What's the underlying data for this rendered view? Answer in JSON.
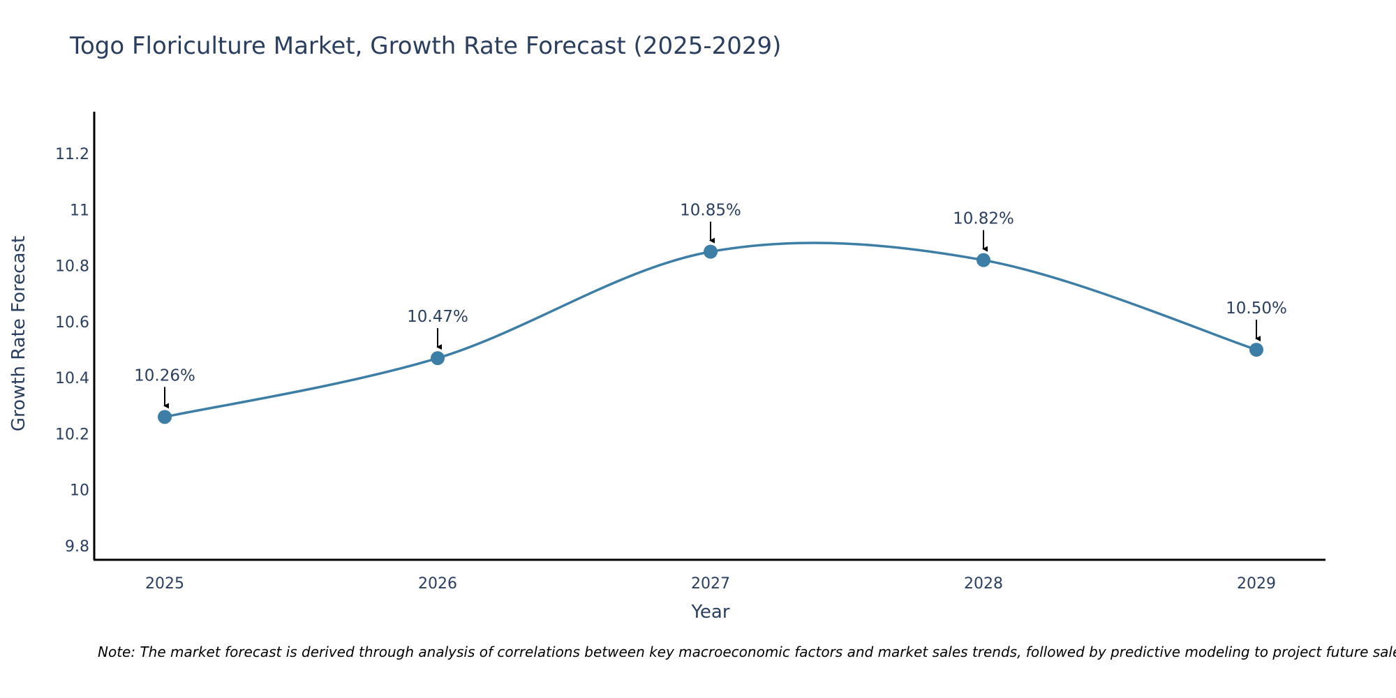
{
  "chart_data": {
    "type": "line",
    "title": "Togo Floriculture Market, Growth Rate Forecast (2025-2029)",
    "xlabel": "Year",
    "ylabel": "Growth Rate Forecast",
    "categories": [
      "2025",
      "2026",
      "2027",
      "2028",
      "2029"
    ],
    "values": [
      10.26,
      10.47,
      10.85,
      10.82,
      10.5
    ],
    "data_labels": [
      "10.26%",
      "10.47%",
      "10.85%",
      "10.82%",
      "10.50%"
    ],
    "yticks": [
      9.8,
      10,
      10.2,
      10.4,
      10.6,
      10.8,
      11,
      11.2
    ],
    "ytick_labels": [
      "9.8",
      "10",
      "10.2",
      "10.4",
      "10.6",
      "10.8",
      "11",
      "11.2"
    ],
    "ylim": [
      9.75,
      11.35
    ],
    "grid": false,
    "line_shape": "spline",
    "line_color": "#3d7ea6",
    "marker_color": "#3d7ea6",
    "annotation_arrow_color": "#000000",
    "note": "Note: The market forecast is derived through analysis of correlations between key macroeconomic factors and market sales trends, followed by predictive modeling to project future sales."
  }
}
